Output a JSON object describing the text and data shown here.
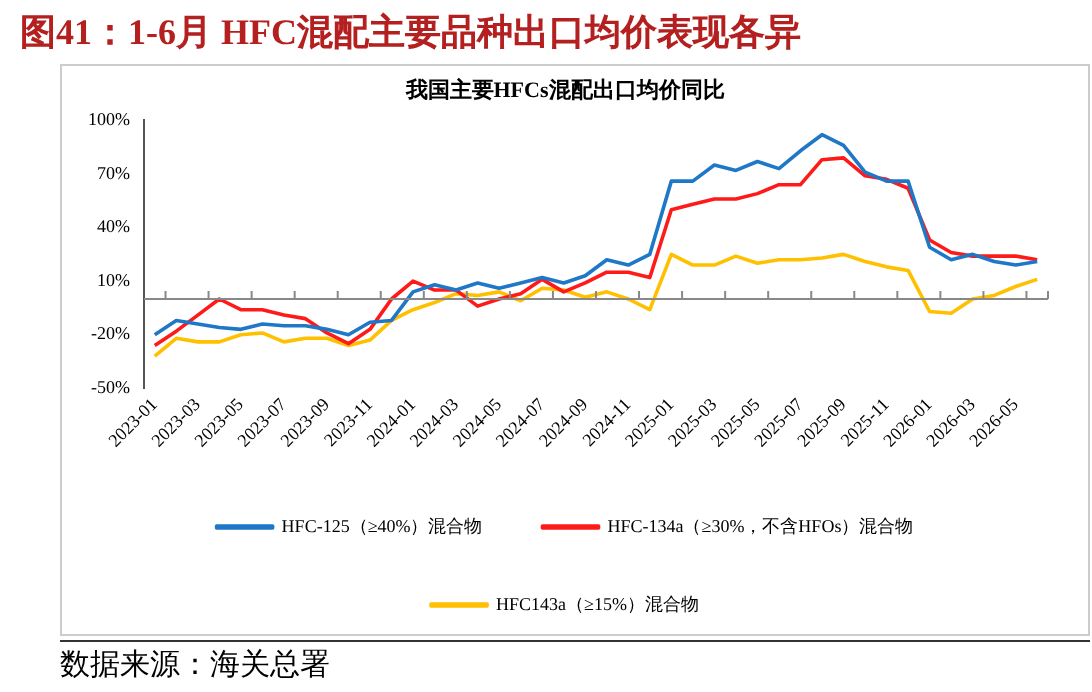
{
  "chart_data": {
    "type": "line",
    "title": "图41：1-6月 HFC混配主要品种出口均价表现各异",
    "subtitle": "我国主要HFCs混配出口均价同比",
    "categories": [
      "2023-01",
      null,
      "2023-03",
      null,
      "2023-05",
      null,
      "2023-07",
      null,
      "2023-09",
      null,
      "2023-11",
      null,
      "2024-01",
      null,
      "2024-03",
      null,
      "2024-05",
      null,
      "2024-07",
      null,
      "2024-09",
      null,
      "2024-11",
      null,
      "2025-01",
      null,
      "2025-03",
      null,
      "2025-05",
      null,
      "2025-07",
      null,
      "2025-09",
      null,
      "2025-11",
      null,
      "2026-01",
      null,
      "2026-03",
      null,
      "2026-05",
      null
    ],
    "series": [
      {
        "name": "HFC-125（≥40%）混合物",
        "color": "#1f77c8",
        "values": [
          -20,
          -12,
          -14,
          -16,
          -17,
          -14,
          -15,
          -15,
          -17,
          -20,
          -13,
          -12,
          4,
          8,
          5,
          9,
          6,
          9,
          12,
          9,
          13,
          22,
          19,
          25,
          66,
          66,
          75,
          72,
          77,
          73,
          83,
          92,
          86,
          71,
          66,
          66,
          29,
          22,
          25,
          21,
          19,
          21
        ]
      },
      {
        "name": "HFC-134a（≥30%，不含HFOs）混合物",
        "color": "#ff1a1a",
        "values": [
          -26,
          -18,
          -9,
          0,
          -6,
          -6,
          -9,
          -11,
          -19,
          -25,
          -17,
          0,
          10,
          5,
          5,
          -4,
          0,
          3,
          11,
          4,
          9,
          15,
          15,
          12,
          50,
          53,
          56,
          56,
          59,
          64,
          64,
          78,
          79,
          69,
          67,
          62,
          33,
          26,
          24,
          24,
          24,
          22
        ]
      },
      {
        "name": "HFC143a（≥15%）混合物",
        "color": "#ffc000",
        "values": [
          -32,
          -22,
          -24,
          -24,
          -20,
          -19,
          -24,
          -22,
          -22,
          -26,
          -23,
          -12,
          -6,
          -2,
          3,
          2,
          4,
          -1,
          6,
          5,
          1,
          4,
          0,
          -6,
          25,
          19,
          19,
          24,
          20,
          22,
          22,
          23,
          25,
          21,
          18,
          16,
          -7,
          -8,
          0,
          2,
          7,
          11
        ]
      }
    ],
    "ylim": [
      -50,
      100
    ],
    "yticks": [
      {
        "value": -50,
        "label": "-50%"
      },
      {
        "value": -20,
        "label": "-20%"
      },
      {
        "value": 10,
        "label": "10%"
      },
      {
        "value": 40,
        "label": "40%"
      },
      {
        "value": 70,
        "label": "70%"
      },
      {
        "value": 100,
        "label": "100%"
      }
    ],
    "grid": false,
    "legend": "bottom",
    "marker": "none",
    "line_style": "solid",
    "annotations": [
      "数据来源：海关总署"
    ]
  }
}
